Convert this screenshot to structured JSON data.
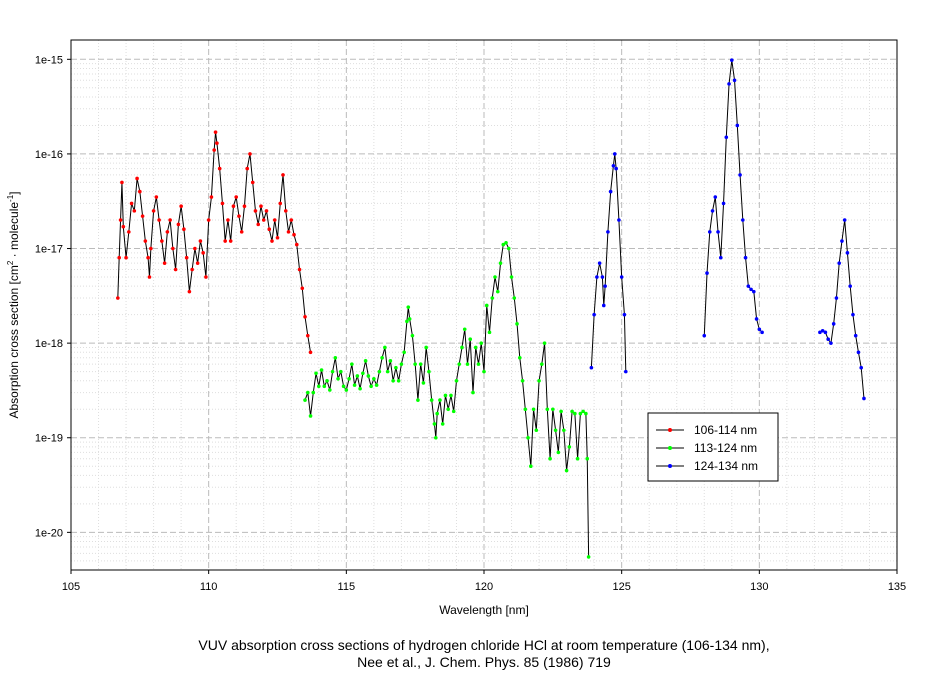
{
  "chart_data": {
    "type": "line",
    "title": "",
    "caption_line1": "VUV absorption cross sections of hydrogen chloride HCl at room temperature (106-134 nm),",
    "caption_line2": "Nee et al., J. Chem. Phys. 85 (1986) 719",
    "xlabel": "Wavelength [nm]",
    "ylabel_main": "Absorption cross section [cm",
    "ylabel_sup1": "2",
    "ylabel_mid": " · molecule",
    "ylabel_sup2": "-1",
    "ylabel_end": "]",
    "x_scale": "linear",
    "y_scale": "log",
    "xlim": [
      105,
      135
    ],
    "ylim": [
      4e-21,
      1.6e-15
    ],
    "x_ticks": [
      105,
      110,
      115,
      120,
      125,
      130,
      135
    ],
    "x_tick_labels": [
      "105",
      "110",
      "115",
      "120",
      "125",
      "130",
      "135"
    ],
    "y_ticks": [
      1e-20,
      1e-19,
      1e-18,
      1e-17,
      1e-16,
      1e-15
    ],
    "y_tick_labels": [
      "1e-20",
      "1e-19",
      "1e-18",
      "1e-17",
      "1e-16",
      "1e-15"
    ],
    "grid": true,
    "legend_position": "bottom-right",
    "line_color": "#000000",
    "series": [
      {
        "name": "106-114 nm",
        "color": "#ff0000",
        "points": [
          [
            106.7,
            3e-18
          ],
          [
            106.75,
            8e-18
          ],
          [
            106.8,
            2e-17
          ],
          [
            106.85,
            5e-17
          ],
          [
            106.9,
            1.7e-17
          ],
          [
            107.0,
            8e-18
          ],
          [
            107.1,
            1.5e-17
          ],
          [
            107.2,
            3e-17
          ],
          [
            107.3,
            2.5e-17
          ],
          [
            107.4,
            5.5e-17
          ],
          [
            107.5,
            4e-17
          ],
          [
            107.6,
            2.2e-17
          ],
          [
            107.7,
            1.2e-17
          ],
          [
            107.8,
            8e-18
          ],
          [
            107.85,
            5e-18
          ],
          [
            107.9,
            1e-17
          ],
          [
            108.0,
            2.5e-17
          ],
          [
            108.1,
            3.5e-17
          ],
          [
            108.2,
            2e-17
          ],
          [
            108.3,
            1.2e-17
          ],
          [
            108.4,
            7e-18
          ],
          [
            108.5,
            1.5e-17
          ],
          [
            108.6,
            2e-17
          ],
          [
            108.7,
            1e-17
          ],
          [
            108.8,
            6e-18
          ],
          [
            108.9,
            1.8e-17
          ],
          [
            109.0,
            2.8e-17
          ],
          [
            109.1,
            1.6e-17
          ],
          [
            109.2,
            8e-18
          ],
          [
            109.3,
            3.5e-18
          ],
          [
            109.4,
            6e-18
          ],
          [
            109.5,
            1e-17
          ],
          [
            109.6,
            7e-18
          ],
          [
            109.7,
            1.2e-17
          ],
          [
            109.8,
            9e-18
          ],
          [
            109.9,
            5e-18
          ],
          [
            110.0,
            2e-17
          ],
          [
            110.1,
            3.5e-17
          ],
          [
            110.2,
            1.1e-16
          ],
          [
            110.25,
            1.7e-16
          ],
          [
            110.3,
            1.3e-16
          ],
          [
            110.4,
            7e-17
          ],
          [
            110.5,
            3e-17
          ],
          [
            110.6,
            1.2e-17
          ],
          [
            110.7,
            2e-17
          ],
          [
            110.8,
            1.2e-17
          ],
          [
            110.9,
            2.8e-17
          ],
          [
            111.0,
            3.5e-17
          ],
          [
            111.1,
            2.2e-17
          ],
          [
            111.2,
            1.5e-17
          ],
          [
            111.3,
            2.8e-17
          ],
          [
            111.4,
            7e-17
          ],
          [
            111.5,
            1e-16
          ],
          [
            111.6,
            5e-17
          ],
          [
            111.7,
            2.5e-17
          ],
          [
            111.8,
            1.8e-17
          ],
          [
            111.9,
            2.8e-17
          ],
          [
            112.0,
            2e-17
          ],
          [
            112.1,
            2.5e-17
          ],
          [
            112.2,
            1.6e-17
          ],
          [
            112.3,
            1.2e-17
          ],
          [
            112.4,
            2e-17
          ],
          [
            112.5,
            1.3e-17
          ],
          [
            112.6,
            3e-17
          ],
          [
            112.7,
            6e-17
          ],
          [
            112.8,
            2.5e-17
          ],
          [
            112.9,
            1.5e-17
          ],
          [
            113.0,
            2e-17
          ],
          [
            113.1,
            1.4e-17
          ],
          [
            113.2,
            1.1e-17
          ],
          [
            113.3,
            6e-18
          ],
          [
            113.4,
            3.8e-18
          ],
          [
            113.5,
            1.9e-18
          ],
          [
            113.6,
            1.2e-18
          ],
          [
            113.7,
            8e-19
          ]
        ]
      },
      {
        "name": "113-124 nm",
        "color": "#00ff00",
        "points": [
          [
            113.5,
            2.5e-19
          ],
          [
            113.6,
            3e-19
          ],
          [
            113.7,
            1.7e-19
          ],
          [
            113.8,
            3e-19
          ],
          [
            113.9,
            4.8e-19
          ],
          [
            114.0,
            3.5e-19
          ],
          [
            114.1,
            5.2e-19
          ],
          [
            114.2,
            3.5e-19
          ],
          [
            114.3,
            4e-19
          ],
          [
            114.4,
            3.2e-19
          ],
          [
            114.5,
            5e-19
          ],
          [
            114.6,
            7e-19
          ],
          [
            114.7,
            4.2e-19
          ],
          [
            114.8,
            5e-19
          ],
          [
            114.9,
            3.5e-19
          ],
          [
            115.0,
            3.2e-19
          ],
          [
            115.1,
            4.2e-19
          ],
          [
            115.2,
            6e-19
          ],
          [
            115.3,
            3.6e-19
          ],
          [
            115.4,
            4.5e-19
          ],
          [
            115.5,
            3.3e-19
          ],
          [
            115.6,
            4.8e-19
          ],
          [
            115.7,
            6.5e-19
          ],
          [
            115.8,
            4.5e-19
          ],
          [
            115.9,
            3.5e-19
          ],
          [
            116.0,
            4.2e-19
          ],
          [
            116.1,
            3.6e-19
          ],
          [
            116.2,
            5e-19
          ],
          [
            116.3,
            7e-19
          ],
          [
            116.4,
            9e-19
          ],
          [
            116.5,
            5e-19
          ],
          [
            116.6,
            6.5e-19
          ],
          [
            116.7,
            4e-19
          ],
          [
            116.8,
            5.5e-19
          ],
          [
            116.9,
            4e-19
          ],
          [
            117.0,
            6e-19
          ],
          [
            117.1,
            8e-19
          ],
          [
            117.2,
            1.7e-18
          ],
          [
            117.25,
            2.4e-18
          ],
          [
            117.3,
            1.8e-18
          ],
          [
            117.4,
            1.2e-18
          ],
          [
            117.5,
            6e-19
          ],
          [
            117.6,
            2.5e-19
          ],
          [
            117.7,
            6e-19
          ],
          [
            117.8,
            3.8e-19
          ],
          [
            117.9,
            9e-19
          ],
          [
            118.0,
            5e-19
          ],
          [
            118.1,
            2.5e-19
          ],
          [
            118.2,
            1.4e-19
          ],
          [
            118.25,
            1e-19
          ],
          [
            118.3,
            1.8e-19
          ],
          [
            118.4,
            2.5e-19
          ],
          [
            118.5,
            1.4e-19
          ],
          [
            118.6,
            2.8e-19
          ],
          [
            118.7,
            2e-19
          ],
          [
            118.8,
            2.8e-19
          ],
          [
            118.9,
            1.9e-19
          ],
          [
            119.0,
            4e-19
          ],
          [
            119.1,
            6e-19
          ],
          [
            119.2,
            9e-19
          ],
          [
            119.3,
            1.4e-18
          ],
          [
            119.4,
            6e-19
          ],
          [
            119.5,
            1.1e-18
          ],
          [
            119.6,
            3e-19
          ],
          [
            119.7,
            9e-19
          ],
          [
            119.8,
            6e-19
          ],
          [
            119.9,
            1e-18
          ],
          [
            120.0,
            5e-19
          ],
          [
            120.1,
            2.5e-18
          ],
          [
            120.2,
            1.3e-18
          ],
          [
            120.3,
            3e-18
          ],
          [
            120.4,
            5e-18
          ],
          [
            120.5,
            3.5e-18
          ],
          [
            120.6,
            7e-18
          ],
          [
            120.7,
            1.1e-17
          ],
          [
            120.8,
            1.15e-17
          ],
          [
            120.9,
            1e-17
          ],
          [
            121.0,
            5e-18
          ],
          [
            121.1,
            3e-18
          ],
          [
            121.2,
            1.6e-18
          ],
          [
            121.3,
            7e-19
          ],
          [
            121.4,
            4e-19
          ],
          [
            121.5,
            2e-19
          ],
          [
            121.6,
            1e-19
          ],
          [
            121.7,
            5e-20
          ],
          [
            121.8,
            2e-19
          ],
          [
            121.9,
            1.2e-19
          ],
          [
            122.0,
            4e-19
          ],
          [
            122.1,
            6e-19
          ],
          [
            122.2,
            1e-18
          ],
          [
            122.3,
            2e-19
          ],
          [
            122.4,
            6e-20
          ],
          [
            122.5,
            2e-19
          ],
          [
            122.6,
            1.2e-19
          ],
          [
            122.7,
            7e-20
          ],
          [
            122.8,
            1.9e-19
          ],
          [
            122.9,
            1.2e-19
          ],
          [
            123.0,
            4.5e-20
          ],
          [
            123.1,
            8e-20
          ],
          [
            123.2,
            1.9e-19
          ],
          [
            123.3,
            1.8e-19
          ],
          [
            123.4,
            6e-20
          ],
          [
            123.5,
            1.8e-19
          ],
          [
            123.6,
            1.9e-19
          ],
          [
            123.7,
            1.8e-19
          ],
          [
            123.75,
            6e-20
          ],
          [
            123.8,
            5.5e-21
          ]
        ]
      },
      {
        "name": "124-134 nm",
        "color": "#0000ff",
        "points": [
          [
            123.9,
            5.5e-19
          ],
          [
            124.0,
            2e-18
          ],
          [
            124.1,
            5e-18
          ],
          [
            124.2,
            7e-18
          ],
          [
            124.3,
            5e-18
          ],
          [
            124.35,
            2.5e-18
          ],
          [
            124.4,
            4e-18
          ],
          [
            124.5,
            1.5e-17
          ],
          [
            124.6,
            4e-17
          ],
          [
            124.7,
            7.5e-17
          ],
          [
            124.75,
            1e-16
          ],
          [
            124.8,
            7e-17
          ],
          [
            124.9,
            2e-17
          ],
          [
            125.0,
            5e-18
          ],
          [
            125.1,
            2e-18
          ],
          [
            125.15,
            5e-19
          ],
          [
            128.0,
            1.2e-18
          ],
          [
            128.1,
            5.5e-18
          ],
          [
            128.2,
            1.5e-17
          ],
          [
            128.3,
            2.5e-17
          ],
          [
            128.4,
            3.5e-17
          ],
          [
            128.5,
            1.5e-17
          ],
          [
            128.6,
            8e-18
          ],
          [
            128.7,
            3e-17
          ],
          [
            128.8,
            1.5e-16
          ],
          [
            128.9,
            5.5e-16
          ],
          [
            129.0,
            9.8e-16
          ],
          [
            129.1,
            6e-16
          ],
          [
            129.2,
            2e-16
          ],
          [
            129.3,
            6e-17
          ],
          [
            129.4,
            2e-17
          ],
          [
            129.5,
            8e-18
          ],
          [
            129.6,
            4e-18
          ],
          [
            129.7,
            3.7e-18
          ],
          [
            129.8,
            3.5e-18
          ],
          [
            129.9,
            1.8e-18
          ],
          [
            130.0,
            1.4e-18
          ],
          [
            130.1,
            1.3e-18
          ],
          [
            132.2,
            1.3e-18
          ],
          [
            132.3,
            1.35e-18
          ],
          [
            132.4,
            1.3e-18
          ],
          [
            132.5,
            1.1e-18
          ],
          [
            132.6,
            1e-18
          ],
          [
            132.7,
            1.6e-18
          ],
          [
            132.8,
            3e-18
          ],
          [
            132.9,
            7e-18
          ],
          [
            133.0,
            1.2e-17
          ],
          [
            133.1,
            2e-17
          ],
          [
            133.2,
            9e-18
          ],
          [
            133.3,
            4e-18
          ],
          [
            133.4,
            2e-18
          ],
          [
            133.5,
            1.2e-18
          ],
          [
            133.6,
            8e-19
          ],
          [
            133.7,
            5.5e-19
          ],
          [
            133.8,
            2.6e-19
          ]
        ]
      }
    ]
  }
}
